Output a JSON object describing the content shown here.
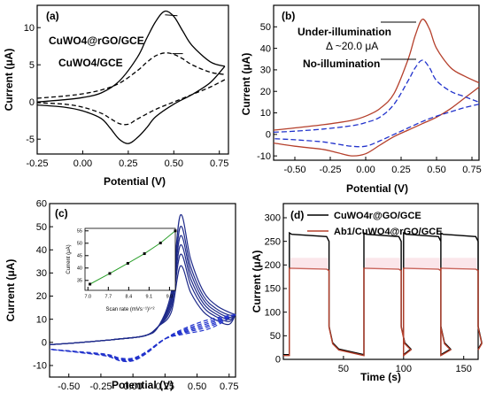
{
  "colors": {
    "black": "#000000",
    "red": "#b5402c",
    "blue": "#2233cc",
    "navy": "#1e2a8a",
    "pink": "#f4b6c2",
    "green": "#2ca02c"
  },
  "chart_data": [
    {
      "id": "a",
      "type": "line",
      "panel_label": "(a)",
      "xlabel": "Potential (V)",
      "ylabel": "Current (μA)",
      "xlim": [
        -0.25,
        0.8
      ],
      "ylim": [
        -7,
        13
      ],
      "xticks": [
        "-0.25",
        "0.00",
        "0.25",
        "0.50",
        "0.75"
      ],
      "yticks": [
        "-5",
        "0",
        "5",
        "10"
      ],
      "annotations": [
        "CuWO4@rGO/GCE",
        "CuWO4/GCE"
      ],
      "series": [
        {
          "name": "CuWO4@rGO/GCE",
          "style": "solid",
          "forward": {
            "x": [
              -0.25,
              -0.1,
              0.0,
              0.1,
              0.2,
              0.3,
              0.35,
              0.4,
              0.45,
              0.5,
              0.55,
              0.6,
              0.7,
              0.78
            ],
            "y": [
              0.0,
              0.3,
              0.6,
              1.2,
              2.8,
              6.0,
              8.5,
              10.8,
              12.2,
              11.5,
              9.5,
              7.6,
              5.4,
              4.8
            ]
          },
          "reverse": {
            "x": [
              0.78,
              0.7,
              0.6,
              0.5,
              0.4,
              0.35,
              0.3,
              0.25,
              0.2,
              0.15,
              0.1,
              0.0,
              -0.1,
              -0.25
            ],
            "y": [
              4.8,
              2.6,
              1.0,
              -0.3,
              -2.0,
              -3.5,
              -4.8,
              -5.6,
              -5.0,
              -3.5,
              -2.2,
              -1.2,
              -0.7,
              -0.4
            ]
          }
        },
        {
          "name": "CuWO4/GCE",
          "style": "dashed",
          "forward": {
            "x": [
              -0.25,
              -0.1,
              0.0,
              0.1,
              0.2,
              0.3,
              0.35,
              0.4,
              0.45,
              0.5,
              0.55,
              0.6,
              0.7,
              0.78
            ],
            "y": [
              0.5,
              0.8,
              1.1,
              1.6,
              2.5,
              4.2,
              5.3,
              6.2,
              6.6,
              6.4,
              5.8,
              5.0,
              4.0,
              3.7
            ]
          },
          "reverse": {
            "x": [
              0.78,
              0.7,
              0.6,
              0.5,
              0.4,
              0.3,
              0.25,
              0.2,
              0.15,
              0.1,
              0.0,
              -0.1,
              -0.25
            ],
            "y": [
              3.0,
              2.0,
              1.0,
              0.0,
              -1.0,
              -2.3,
              -3.0,
              -2.9,
              -2.2,
              -1.5,
              -0.7,
              -0.3,
              -0.1
            ]
          }
        }
      ]
    },
    {
      "id": "b",
      "type": "line",
      "panel_label": "(b)",
      "xlabel": "Potential (V)",
      "ylabel": "Current (μA)",
      "xlim": [
        -0.65,
        0.8
      ],
      "ylim": [
        -12,
        60
      ],
      "xticks": [
        "-0.50",
        "-0.25",
        "0.00",
        "0.25",
        "0.50",
        "0.75"
      ],
      "yticks": [
        "-10",
        "0",
        "10",
        "20",
        "30",
        "40",
        "50"
      ],
      "annotations": [
        "Under-illumination",
        "Δ ~20.0 μA",
        "No-illumination"
      ],
      "series": [
        {
          "name": "Under-illumination",
          "style": "solid",
          "color": "red",
          "forward": {
            "x": [
              -0.65,
              -0.5,
              -0.3,
              -0.1,
              0.0,
              0.1,
              0.2,
              0.3,
              0.35,
              0.4,
              0.45,
              0.5,
              0.6,
              0.7,
              0.8
            ],
            "y": [
              2,
              3,
              4.5,
              6.5,
              8.5,
              12,
              19,
              35,
              46,
              53.5,
              49,
              40,
              31,
              27,
              24
            ]
          },
          "reverse": {
            "x": [
              0.8,
              0.7,
              0.6,
              0.5,
              0.4,
              0.3,
              0.2,
              0.1,
              0.0,
              -0.1,
              -0.2,
              -0.3,
              -0.5,
              -0.65
            ],
            "y": [
              22,
              17,
              12,
              8,
              5,
              2,
              -1,
              -5,
              -9,
              -10,
              -8.5,
              -7,
              -5.5,
              -4
            ]
          }
        },
        {
          "name": "No-illumination",
          "style": "dashed",
          "color": "blue",
          "forward": {
            "x": [
              -0.65,
              -0.5,
              -0.3,
              -0.1,
              0.0,
              0.1,
              0.2,
              0.3,
              0.35,
              0.4,
              0.45,
              0.5,
              0.6,
              0.7,
              0.8
            ],
            "y": [
              1,
              1.5,
              2.5,
              4,
              5.5,
              8,
              14,
              25,
              31,
              34.5,
              31,
              25,
              20,
              17.5,
              15
            ]
          },
          "reverse": {
            "x": [
              0.8,
              0.7,
              0.6,
              0.5,
              0.4,
              0.3,
              0.2,
              0.1,
              0.0,
              -0.1,
              -0.2,
              -0.3,
              -0.5,
              -0.65
            ],
            "y": [
              14,
              12.5,
              10.5,
              8.5,
              6,
              3,
              0,
              -3,
              -5.5,
              -5.5,
              -4.5,
              -3.5,
              -2.5,
              -2
            ]
          }
        }
      ]
    },
    {
      "id": "c",
      "type": "line",
      "panel_label": "(c)",
      "xlabel": "Potential (V)",
      "ylabel": "Current (μA)",
      "xlim": [
        -0.65,
        0.8
      ],
      "ylim": [
        -15,
        60
      ],
      "xticks": [
        "-0.50",
        "-0.25",
        "0.00",
        "0.25",
        "0.50",
        "0.75"
      ],
      "yticks": [
        "-10",
        "0",
        "10",
        "20",
        "30",
        "40",
        "50",
        "60"
      ],
      "peaks": [
        33,
        38,
        42,
        46,
        50,
        55
      ],
      "inset": {
        "type": "line",
        "xlabel": "Scan rate (mVs⁻¹)¹ᐟ²",
        "ylabel": "Current (μA)",
        "xlim": [
          6.9,
          10.0
        ],
        "ylim": [
          31,
          56
        ],
        "xticks": [
          "7.0",
          "7.7",
          "8.4",
          "9.1",
          "9.8"
        ],
        "yticks": [
          "35",
          "40",
          "45",
          "50",
          "55"
        ],
        "x": [
          7.07,
          7.75,
          8.37,
          8.94,
          9.49,
          10.0
        ],
        "y": [
          33.5,
          37.8,
          41.9,
          45.8,
          50.1,
          55.0
        ]
      }
    },
    {
      "id": "d",
      "type": "line",
      "panel_label": "(d)",
      "xlabel": "Time (s)",
      "ylabel": "Current (μA)",
      "xlim": [
        0,
        162
      ],
      "ylim": [
        0,
        330
      ],
      "xticks": [
        "50",
        "100",
        "150"
      ],
      "yticks": [
        "0",
        "50",
        "100",
        "150",
        "200",
        "250",
        "300"
      ],
      "legend_position": "top-right",
      "on_off_cycles": [
        [
          5,
          38
        ],
        [
          67,
          98
        ],
        [
          100,
          131
        ],
        [
          131,
          162
        ]
      ],
      "series": [
        {
          "name": "CuWO4r@GO/GCE",
          "color": "black",
          "on_level": 265,
          "off_level": 10
        },
        {
          "name": "Ab1/CuWO4@rGO/GCE",
          "color": "red",
          "on_level": 193,
          "off_level": 8
        }
      ]
    }
  ]
}
